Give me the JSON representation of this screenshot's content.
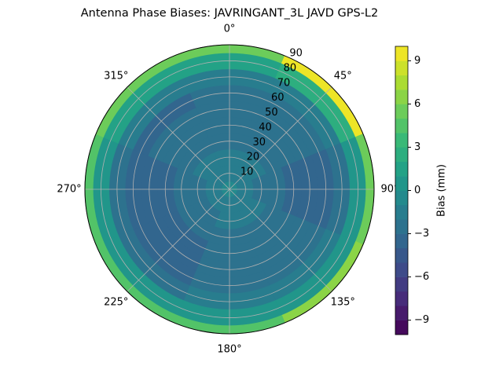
{
  "chart_data": {
    "type": "polar_contour",
    "title": "Antenna Phase Biases: JAVRINGANT_3L   JAVD GPS-L2",
    "azimuths": [
      0,
      45,
      90,
      135,
      180,
      225,
      270,
      315
    ],
    "zeniths": [
      0,
      10,
      20,
      30,
      40,
      50,
      60,
      70,
      80,
      90
    ],
    "values": [
      [
        -1,
        -1,
        -1,
        -1,
        -1,
        -1,
        -1,
        -1
      ],
      [
        -1.5,
        -1.5,
        -2,
        -1.5,
        -1.5,
        -1.5,
        -2,
        -1.5
      ],
      [
        -2,
        -2,
        -2.5,
        -2,
        -2,
        -2.5,
        -2.5,
        -2
      ],
      [
        -2.5,
        -2.5,
        -3,
        -2.5,
        -2.5,
        -3,
        -3,
        -2.5
      ],
      [
        -3,
        -3,
        -3.5,
        -3,
        -3,
        -3.5,
        -3.5,
        -3
      ],
      [
        -3,
        -3,
        -4,
        -3,
        -3,
        -4,
        -4,
        -3
      ],
      [
        -3,
        -3,
        -4,
        -3,
        -3,
        -4,
        -4,
        -3.5
      ],
      [
        -2,
        -1.5,
        -3,
        -2,
        -2,
        -3,
        -3,
        -2
      ],
      [
        1,
        2,
        0,
        0.5,
        0.5,
        0,
        0,
        1
      ],
      [
        5,
        9,
        5,
        6,
        4,
        4,
        4,
        5
      ]
    ],
    "rlim": [
      0,
      90
    ],
    "rticks": [
      10,
      20,
      30,
      40,
      50,
      60,
      70,
      80,
      90
    ],
    "thetaticks": [
      {
        "value": 0,
        "label": "0°"
      },
      {
        "value": 45,
        "label": "45°"
      },
      {
        "value": 90,
        "label": "90°"
      },
      {
        "value": 135,
        "label": "135°"
      },
      {
        "value": 180,
        "label": "180°"
      },
      {
        "value": 225,
        "label": "225°"
      },
      {
        "value": 270,
        "label": "270°"
      },
      {
        "value": 315,
        "label": "315°"
      }
    ],
    "colorbar_label": "Bias (mm)",
    "clim": [
      -10,
      10
    ],
    "levels": 20,
    "colormap": "viridis",
    "cticks": [
      {
        "value": -9,
        "label": "−9"
      },
      {
        "value": -6,
        "label": "−6"
      },
      {
        "value": -3,
        "label": "−3"
      },
      0,
      3,
      6,
      9
    ],
    "grid": true
  }
}
